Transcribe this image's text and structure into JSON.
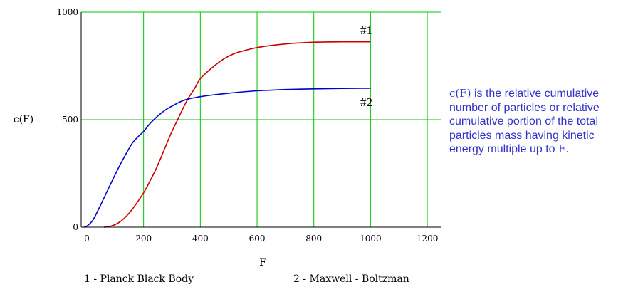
{
  "chart_data": {
    "type": "line",
    "xlabel": "F",
    "ylabel": "c(F)",
    "xlim": [
      -20,
      1250
    ],
    "ylim": [
      0,
      1000
    ],
    "x_ticks": [
      "0",
      "200",
      "400",
      "600",
      "800",
      "1000",
      "1200"
    ],
    "y_ticks": [
      "0",
      "500",
      "1000"
    ],
    "grid": true,
    "grid_color": "#00c800",
    "series": [
      {
        "name": "#1",
        "color": "#cc0000",
        "x": [
          60,
          80,
          100,
          120,
          140,
          160,
          180,
          200,
          220,
          240,
          260,
          280,
          300,
          320,
          340,
          360,
          380,
          400,
          440,
          480,
          520,
          560,
          600,
          650,
          700,
          750,
          800,
          900,
          1000
        ],
        "y": [
          0,
          3,
          12,
          28,
          52,
          83,
          120,
          160,
          208,
          260,
          320,
          383,
          445,
          500,
          555,
          605,
          645,
          690,
          740,
          780,
          807,
          823,
          835,
          845,
          852,
          857,
          860,
          862,
          862
        ]
      },
      {
        "name": "#2",
        "color": "#0000cc",
        "x": [
          -10,
          0,
          20,
          40,
          60,
          80,
          100,
          120,
          140,
          160,
          180,
          200,
          220,
          240,
          260,
          280,
          300,
          320,
          340,
          360,
          380,
          400,
          450,
          500,
          550,
          600,
          650,
          700,
          800,
          900,
          1000
        ],
        "y": [
          0,
          5,
          30,
          80,
          135,
          190,
          245,
          297,
          345,
          390,
          420,
          445,
          478,
          505,
          528,
          548,
          563,
          577,
          589,
          597,
          602,
          607,
          616,
          623,
          629,
          634,
          637,
          640,
          643,
          645,
          646
        ]
      }
    ]
  },
  "captions": {
    "series1": "1 - Planck Black Body",
    "series2": "2 - Maxwell - Boltzman"
  },
  "note": {
    "func": "c(F)",
    "text_a": " is the relative cumulative number of particles or relative cumulative portion of the total particles mass having kinetic energy multiple up to ",
    "var": "F",
    "text_b": "."
  }
}
